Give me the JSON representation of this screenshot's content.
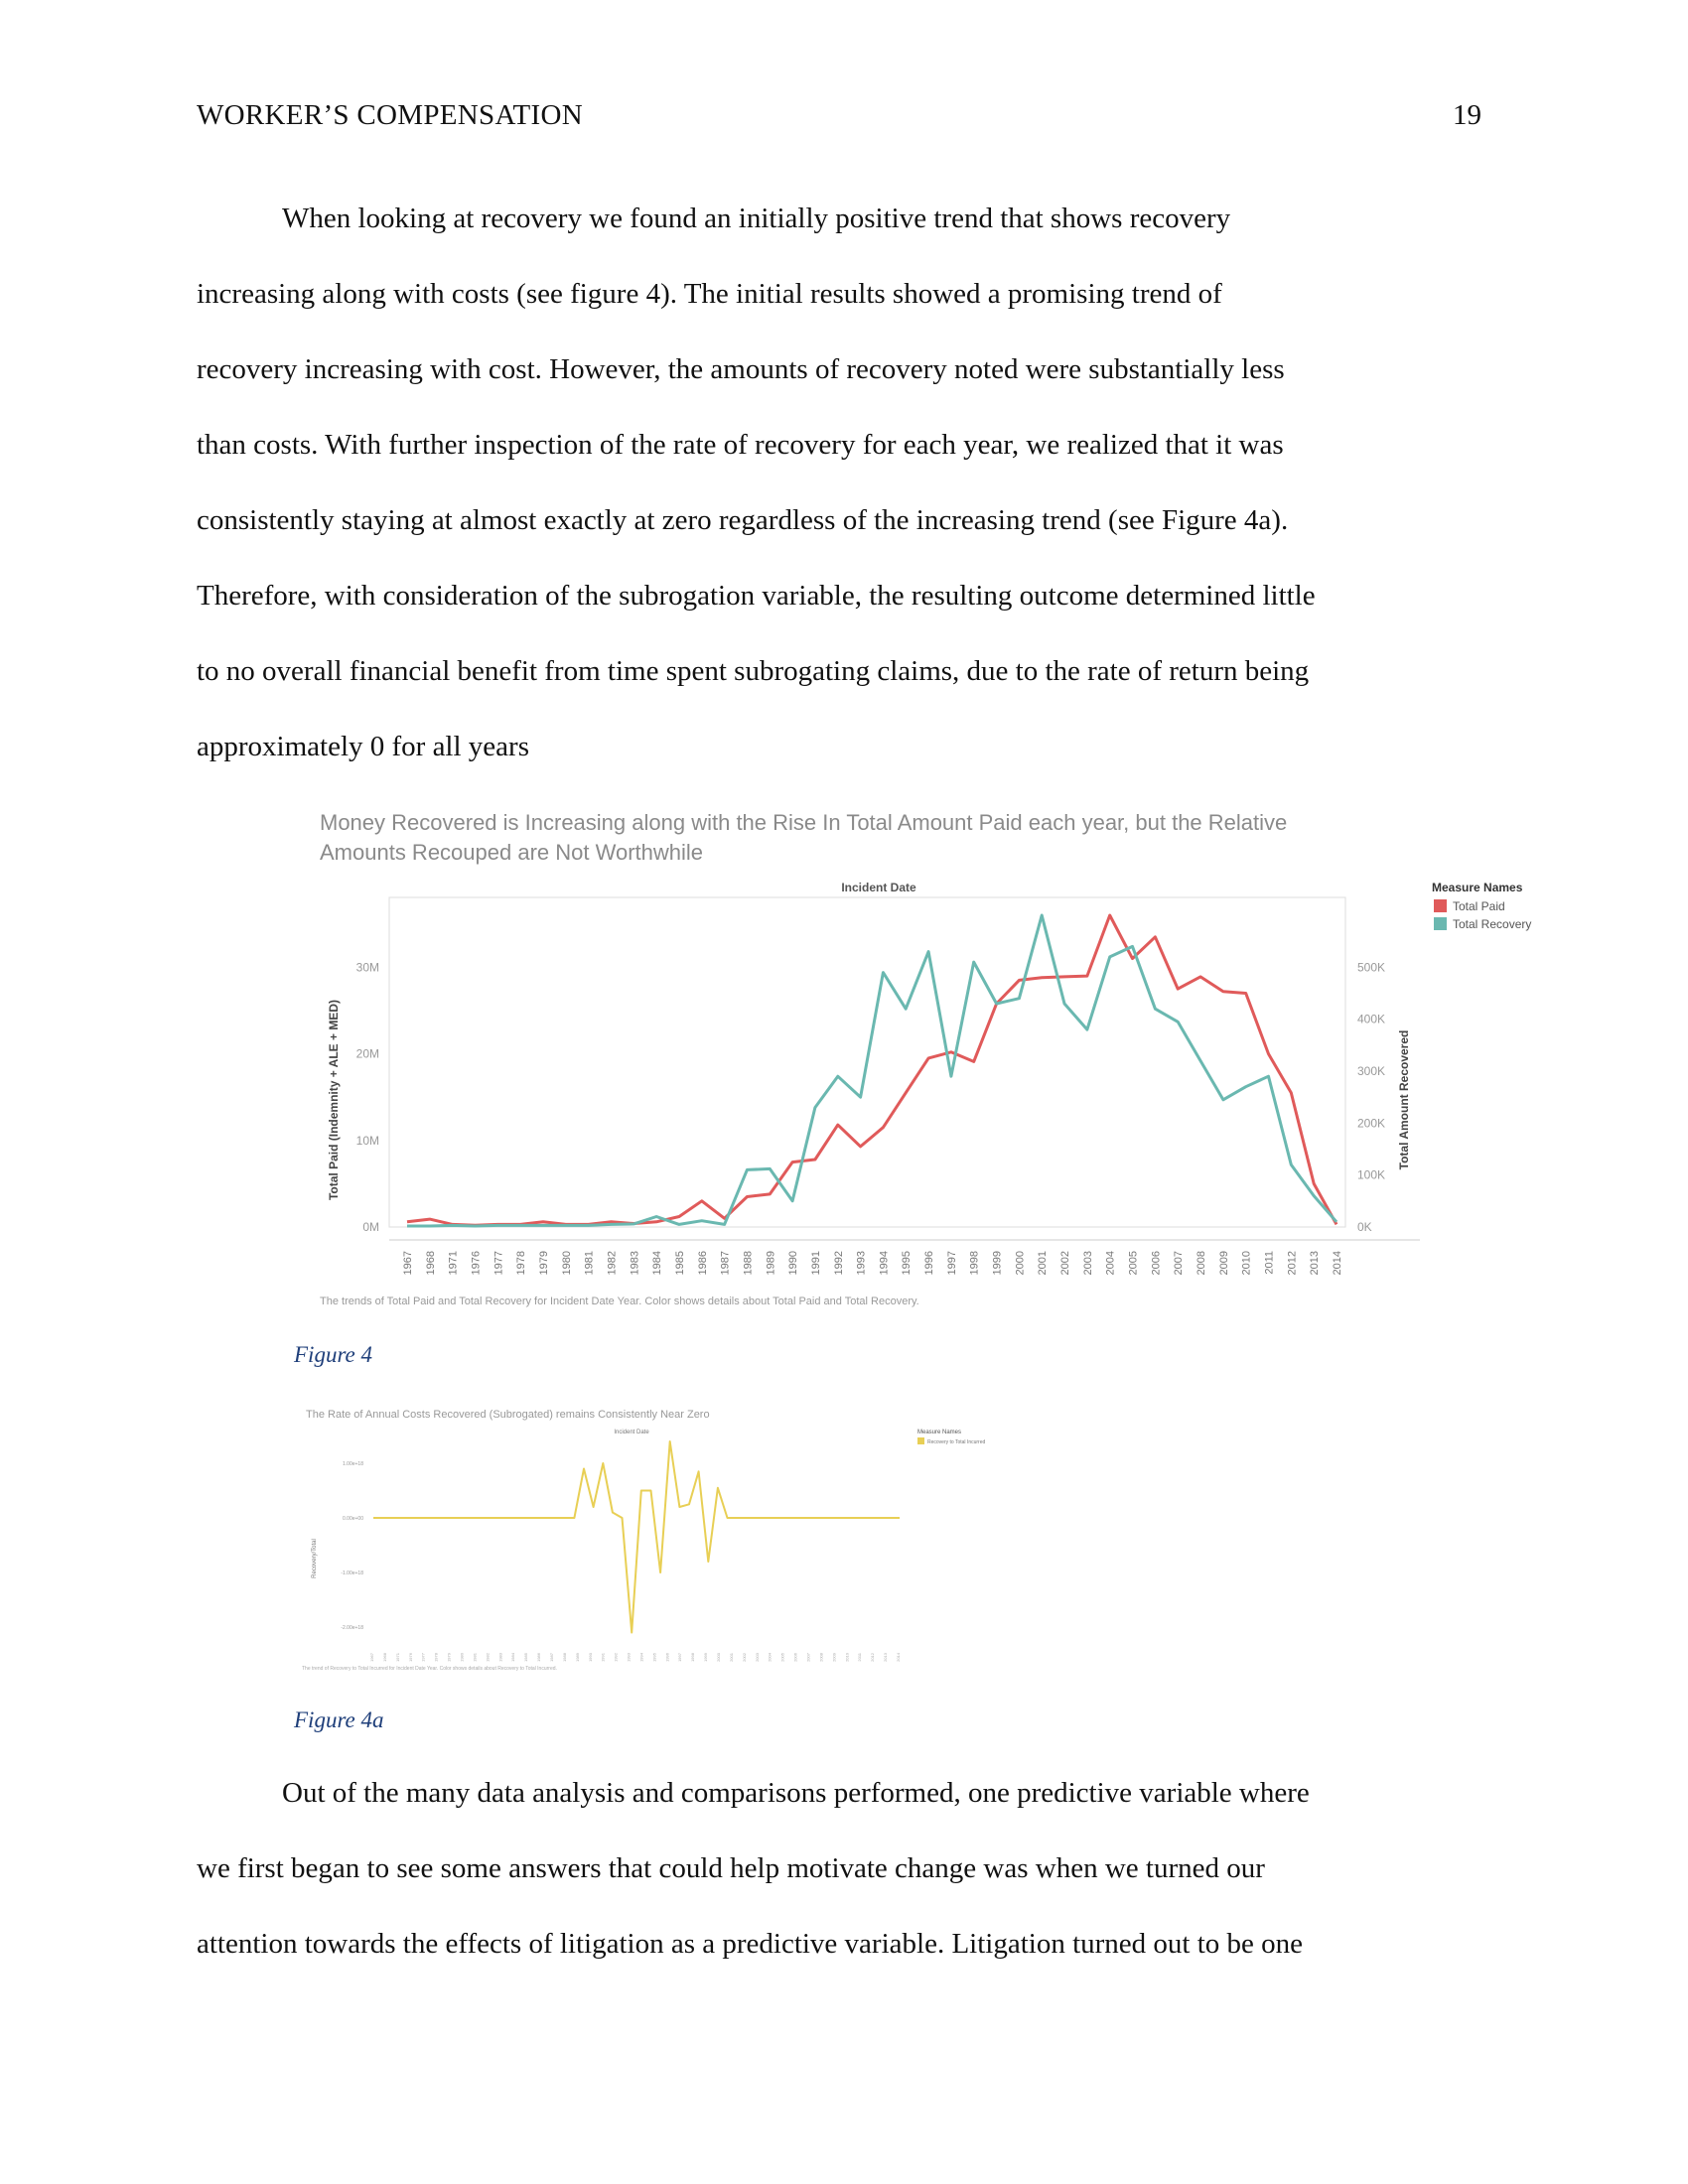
{
  "header": {
    "running_title": "WORKER’S COMPENSATION",
    "page_number": "19"
  },
  "paragraph1": {
    "lines": [
      "When looking at recovery we found an initially positive trend that shows recovery",
      "increasing along with costs (see figure 4).  The initial results showed a promising trend of",
      "recovery increasing with cost. However, the amounts of recovery noted were substantially less",
      "than costs. With further inspection of the rate of recovery for each year, we realized that it was",
      "consistently staying at almost exactly at zero regardless of the increasing trend (see Figure 4a).",
      "Therefore, with consideration of the subrogation variable, the resulting outcome determined little",
      "to no overall financial benefit from time spent subrogating claims, due to the rate of return being",
      "approximately 0 for all years"
    ]
  },
  "figure4": {
    "caption": "Figure 4"
  },
  "figure4a": {
    "caption": "Figure 4a"
  },
  "paragraph2": {
    "lines": [
      "Out of the many data analysis and comparisons performed, one predictive variable where",
      "we first began to see some answers that could help motivate change was when we turned our",
      "attention towards the effects of litigation as a predictive variable. Litigation turned out to be one"
    ]
  },
  "chart_data": [
    {
      "type": "line",
      "title": "Money Recovered is Increasing along with the Rise In Total Amount Paid each year, but the Relative",
      "title_line2": "Amounts Recouped are Not Worthwhile",
      "top_axis_label": "Incident Date",
      "ylabel_left": "Total Paid (Indemnity + ALE + MED)",
      "ylabel_right": "Total Amount Recovered",
      "left_ticks": [
        "30M",
        "20M",
        "10M",
        "0M"
      ],
      "right_ticks": [
        "500K",
        "400K",
        "300K",
        "200K",
        "100K",
        "0K"
      ],
      "ylim_left": [
        0,
        36000000
      ],
      "ylim_right": [
        0,
        600000
      ],
      "x": [
        "1967",
        "1968",
        "1971",
        "1976",
        "1977",
        "1978",
        "1979",
        "1980",
        "1981",
        "1982",
        "1983",
        "1984",
        "1985",
        "1986",
        "1987",
        "1988",
        "1989",
        "1990",
        "1991",
        "1992",
        "1993",
        "1994",
        "1995",
        "1996",
        "1997",
        "1998",
        "1999",
        "2000",
        "2001",
        "2002",
        "2003",
        "2004",
        "2005",
        "2006",
        "2007",
        "2008",
        "2009",
        "2010",
        "2011",
        "2012",
        "2013",
        "2014"
      ],
      "legend_title": "Measure Names",
      "series": [
        {
          "name": "Total Paid",
          "axis": "left",
          "color": "#e05a5a",
          "values": [
            600000,
            900000,
            300000,
            200000,
            300000,
            300000,
            600000,
            300000,
            300000,
            600000,
            400000,
            600000,
            1200000,
            3000000,
            1000000,
            3500000,
            3800000,
            7500000,
            7800000,
            11800000,
            9300000,
            11500000,
            15500000,
            19500000,
            20200000,
            19100000,
            25800000,
            28500000,
            28800000,
            28900000,
            29000000,
            36000000,
            31000000,
            33500000,
            27500000,
            28900000,
            27200000,
            27000000,
            20000000,
            15500000,
            5000000,
            300000
          ]
        },
        {
          "name": "Total Recovery",
          "axis": "right",
          "color": "#6ab8b0",
          "values": [
            2000,
            2000,
            3000,
            2000,
            3000,
            3000,
            3000,
            3000,
            3000,
            5000,
            6000,
            20000,
            5000,
            12000,
            5000,
            110000,
            112000,
            50000,
            230000,
            290000,
            250000,
            490000,
            420000,
            530000,
            290000,
            510000,
            430000,
            440000,
            600000,
            430000,
            380000,
            520000,
            540000,
            420000,
            395000,
            320000,
            245000,
            270000,
            290000,
            120000,
            60000,
            10000
          ]
        }
      ],
      "footnote": "The trends of Total Paid and Total Recovery for Incident Date Year.  Color shows details about Total Paid and Total Recovery."
    },
    {
      "type": "line",
      "title": "The Rate of Annual Costs Recovered (Subrogated) remains Consistently Near Zero",
      "top_axis_label": "Incident Date",
      "ylabel": "Recovery/Total",
      "y_ticks": [
        "1.00e+18",
        "0.00e+00",
        "-1.00e+18",
        "-2.00e+18"
      ],
      "ylim": [
        -2.2e+18,
        1.4e+18
      ],
      "legend_title": "Measure Names",
      "series": [
        {
          "name": "Recovery to Total Incurred",
          "color": "#e8cf55",
          "values": [
            0,
            0,
            0,
            0,
            0,
            0,
            0,
            0,
            0,
            0,
            0,
            0,
            0,
            0,
            0,
            0,
            0,
            0,
            0,
            0,
            0,
            0,
            9e+17,
            2e+17,
            1e+18,
            1e+17,
            0,
            -2.1e+18,
            5e+17,
            5e+17,
            -1e+18,
            1.4e+18,
            2e+17,
            2.5e+17,
            8.5e+17,
            -8e+17,
            5.5e+17,
            0,
            0,
            0,
            0,
            0,
            0,
            0,
            0,
            0,
            0,
            0,
            0,
            0,
            0,
            0,
            0,
            0,
            0,
            0
          ]
        }
      ],
      "footnote": "The trend of Recovery to Total Incurred for Incident Date Year.  Color shows details about Recovery to Total Incurred."
    }
  ]
}
